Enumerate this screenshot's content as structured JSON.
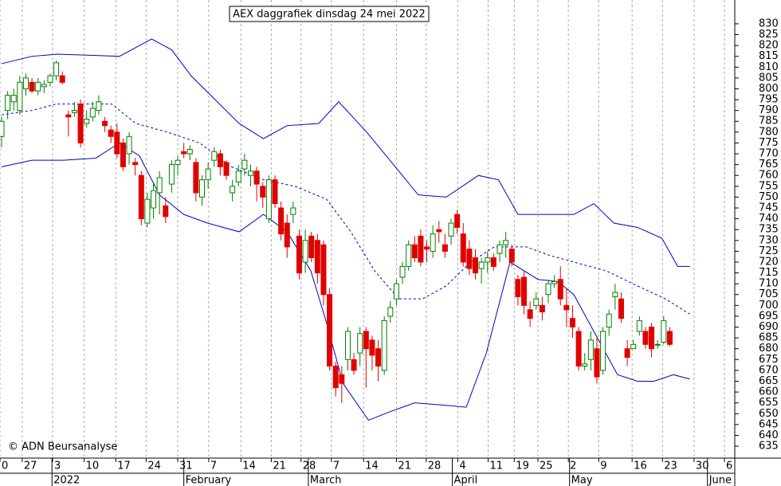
{
  "chart_data": {
    "type": "candlestick",
    "title": "AEX daggrafiek dinsdag 24 mei 2022",
    "copyright": "© ADN Beursanalyse",
    "up_color": "#008000",
    "down_color": "#e00000",
    "grid": true,
    "xlim": [
      -0.26,
      120.7
    ],
    "ylim": [
      629.5,
      841
    ],
    "yticks": [
      635,
      640,
      645,
      650,
      655,
      660,
      665,
      670,
      675,
      680,
      685,
      690,
      695,
      700,
      705,
      710,
      715,
      720,
      725,
      730,
      735,
      740,
      745,
      750,
      755,
      760,
      765,
      770,
      775,
      780,
      785,
      790,
      795,
      800,
      805,
      810,
      815,
      820,
      825,
      830
    ],
    "xticks": [
      {
        "value": -0.26,
        "label": "0"
      },
      {
        "value": 3.4,
        "label": "27"
      },
      {
        "value": 8.4,
        "label": "3"
      },
      {
        "value": 13.6,
        "label": "10"
      },
      {
        "value": 18.8,
        "label": "17"
      },
      {
        "value": 23.8,
        "label": "24"
      },
      {
        "value": 29.0,
        "label": "31"
      },
      {
        "value": 34.1,
        "label": "7"
      },
      {
        "value": 39.4,
        "label": "14"
      },
      {
        "value": 44.4,
        "label": "21"
      },
      {
        "value": 49.3,
        "label": "28"
      },
      {
        "value": 54.3,
        "label": "7"
      },
      {
        "value": 59.6,
        "label": "14"
      },
      {
        "value": 65.0,
        "label": "21"
      },
      {
        "value": 69.9,
        "label": "28"
      },
      {
        "value": 75.1,
        "label": "4"
      },
      {
        "value": 80.1,
        "label": "11"
      },
      {
        "value": 84.4,
        "label": "19"
      },
      {
        "value": 88.3,
        "label": "25"
      },
      {
        "value": 93.3,
        "label": "2"
      },
      {
        "value": 98.3,
        "label": "9"
      },
      {
        "value": 103.8,
        "label": "16"
      },
      {
        "value": 108.8,
        "label": "23"
      },
      {
        "value": 114.0,
        "label": "30"
      },
      {
        "value": 119.0,
        "label": "6"
      }
    ],
    "months": [
      {
        "value": 8.3,
        "label": "2022"
      },
      {
        "value": 30.0,
        "label": "February"
      },
      {
        "value": 50.5,
        "label": "March"
      },
      {
        "value": 74.2,
        "label": "April"
      },
      {
        "value": 93.5,
        "label": "May"
      },
      {
        "value": 116.2,
        "label": "June"
      }
    ],
    "open": [
      778,
      790,
      794,
      790,
      800,
      803,
      799,
      801,
      803,
      806,
      806,
      788,
      789,
      793,
      784,
      787,
      790,
      785,
      781,
      780,
      775,
      770,
      766,
      760,
      738,
      745,
      752,
      746,
      756,
      765,
      771,
      770,
      766,
      750,
      758,
      767,
      770,
      766,
      752,
      757,
      763,
      760,
      762,
      755,
      740,
      758,
      745,
      738,
      742,
      732,
      720,
      732,
      730,
      728,
      705,
      672,
      668,
      675,
      675,
      678,
      688,
      684,
      680,
      670,
      695,
      703,
      713,
      718,
      728,
      732,
      727,
      725,
      735,
      728,
      732,
      742,
      733,
      726,
      722,
      717,
      720,
      722,
      724,
      728,
      726,
      712,
      713,
      698,
      700,
      700,
      705,
      710,
      712,
      700,
      694,
      688,
      672,
      675,
      680,
      670,
      690,
      704,
      703,
      680,
      680,
      688,
      688,
      690,
      682,
      683,
      688
    ],
    "high": [
      787,
      799,
      800,
      806,
      807,
      805,
      805,
      804,
      807,
      813,
      808,
      790,
      794,
      795,
      790,
      794,
      797,
      787,
      783,
      784,
      777,
      780,
      768,
      762,
      752,
      757,
      762,
      750,
      767,
      769,
      775,
      774,
      768,
      760,
      766,
      773,
      772,
      767,
      758,
      765,
      770,
      765,
      764,
      757,
      760,
      760,
      748,
      742,
      748,
      735,
      735,
      734,
      733,
      730,
      708,
      674,
      672,
      690,
      678,
      690,
      690,
      686,
      684,
      695,
      702,
      712,
      720,
      730,
      732,
      735,
      730,
      737,
      739,
      733,
      740,
      744,
      738,
      730,
      726,
      722,
      725,
      724,
      730,
      734,
      728,
      714,
      716,
      702,
      706,
      704,
      712,
      714,
      718,
      708,
      700,
      690,
      678,
      688,
      686,
      690,
      698,
      710,
      706,
      684,
      684,
      695,
      690,
      692,
      684,
      695,
      690
    ],
    "low": [
      773,
      786,
      790,
      788,
      797,
      798,
      797,
      798,
      801,
      804,
      802,
      778,
      787,
      773,
      782,
      785,
      788,
      780,
      775,
      768,
      762,
      765,
      760,
      737,
      736,
      740,
      742,
      738,
      752,
      760,
      768,
      767,
      748,
      746,
      754,
      764,
      760,
      758,
      748,
      755,
      760,
      755,
      748,
      745,
      738,
      745,
      730,
      722,
      738,
      712,
      715,
      720,
      710,
      700,
      670,
      658,
      655,
      670,
      668,
      672,
      662,
      670,
      665,
      668,
      692,
      700,
      710,
      716,
      720,
      718,
      720,
      722,
      729,
      722,
      728,
      733,
      718,
      714,
      712,
      710,
      715,
      716,
      720,
      722,
      718,
      700,
      696,
      690,
      698,
      693,
      701,
      708,
      700,
      690,
      685,
      670,
      670,
      670,
      664,
      668,
      686,
      698,
      692,
      672,
      680,
      686,
      680,
      676,
      680,
      682,
      681
    ],
    "close": [
      785,
      797,
      797,
      803,
      805,
      799,
      803,
      802,
      806,
      812,
      803,
      787,
      790,
      775,
      786,
      791,
      794,
      783,
      778,
      770,
      764,
      778,
      765,
      740,
      749,
      753,
      759,
      741,
      765,
      767,
      770,
      772,
      752,
      758,
      763,
      771,
      764,
      760,
      755,
      762,
      767,
      762,
      756,
      750,
      758,
      747,
      733,
      727,
      745,
      715,
      730,
      722,
      715,
      705,
      672,
      662,
      664,
      688,
      670,
      687,
      680,
      677,
      672,
      693,
      699,
      710,
      718,
      728,
      722,
      720,
      726,
      733,
      734,
      725,
      738,
      736,
      720,
      717,
      715,
      720,
      722,
      718,
      728,
      730,
      720,
      704,
      700,
      694,
      703,
      697,
      710,
      711,
      703,
      698,
      690,
      672,
      673,
      684,
      667,
      688,
      696,
      706,
      694,
      676,
      682,
      693,
      682,
      680,
      682,
      693,
      682
    ],
    "bands": [
      {
        "color": "#0000c8",
        "dash": false,
        "x": [
          0,
          5,
          9.2,
          19.4,
          24.7,
          28,
          31.2,
          39.1,
          43.1,
          47,
          52.2,
          55.5,
          60.1,
          65.4,
          68.6,
          73.2,
          78.5,
          81.8,
          85.0,
          89,
          94.2,
          97.5,
          100.8,
          104.7,
          108.7,
          111.3,
          113.3
        ],
        "values": [
          811.6,
          815,
          816,
          815,
          823,
          818,
          806,
          784,
          777,
          783,
          784,
          794,
          780,
          762,
          751,
          750,
          760,
          758,
          742,
          742,
          742,
          747,
          738,
          736,
          731,
          718,
          718
        ]
      },
      {
        "color": "#0000c8",
        "dash": true,
        "x": [
          0,
          5,
          9,
          14.2,
          18.1,
          22.1,
          27.3,
          32.6,
          37.8,
          43.1,
          48.3,
          53.5,
          57.5,
          61.4,
          65.4,
          69.3,
          73.2,
          77.2,
          81.1,
          86.4,
          90.3,
          94.2,
          99.5,
          104.7,
          109.3,
          113.3
        ],
        "values": [
          788,
          790,
          793,
          793,
          793,
          784,
          780,
          775,
          764,
          758,
          755,
          749,
          734,
          716,
          703,
          703,
          709,
          720,
          727,
          727,
          723,
          720,
          716,
          709,
          703,
          696
        ]
      },
      {
        "color": "#0000c8",
        "dash": false,
        "x": [
          0,
          5,
          10.2,
          15.5,
          19.4,
          22.7,
          26,
          30,
          33.9,
          39.1,
          43.1,
          47,
          50.9,
          53.5,
          56.2,
          60.4,
          64.0,
          68,
          72.6,
          76.5,
          79.8,
          83.7,
          88.3,
          91.6,
          94.2,
          97.5,
          101.4,
          104.7,
          107.4,
          110.6,
          113.3
        ],
        "values": [
          764,
          767,
          767,
          768,
          775,
          769,
          751,
          742,
          738,
          734,
          742,
          734,
          716,
          692,
          664,
          647,
          651,
          655,
          654,
          653,
          678,
          720,
          712,
          711,
          705,
          688,
          668,
          665,
          665,
          668,
          666
        ]
      }
    ]
  }
}
